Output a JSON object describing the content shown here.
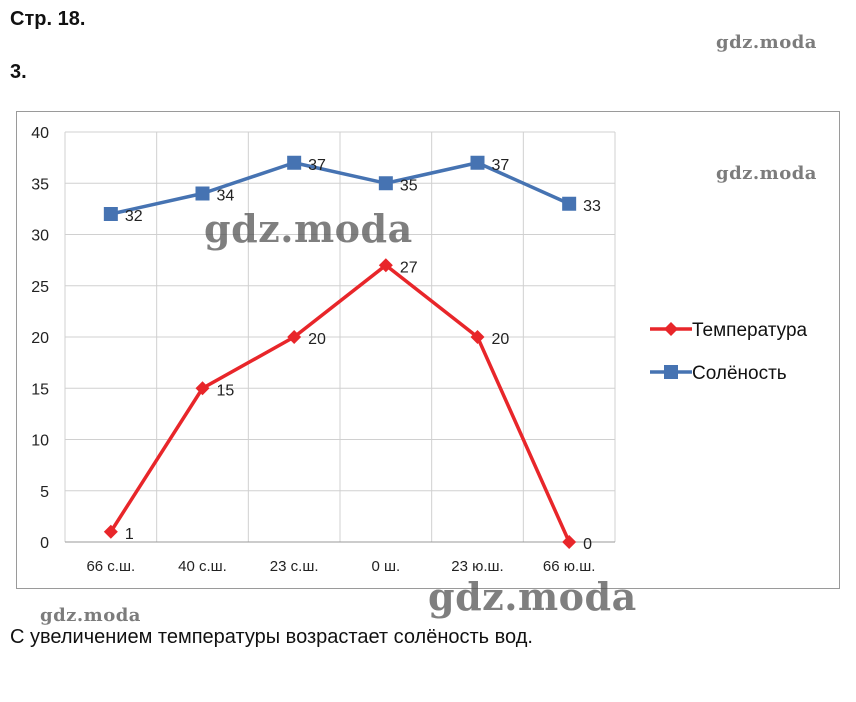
{
  "page": {
    "header": "Стр. 18.",
    "task_number": "3.",
    "answer": "С увеличением температуры возрастает солёность вод.",
    "watermark": "gdz.moda"
  },
  "chart_data": {
    "type": "line",
    "categories": [
      "66 с.ш.",
      "40 с.ш.",
      "23 с.ш.",
      "0 ш.",
      "23 ю.ш.",
      "66 ю.ш."
    ],
    "ylim": [
      0,
      40
    ],
    "yticks": [
      0,
      5,
      10,
      15,
      20,
      25,
      30,
      35,
      40
    ],
    "grid": true,
    "legend_position": "right",
    "series": [
      {
        "name": "Температура",
        "color": "#e8262a",
        "marker": "diamond",
        "values": [
          1,
          15,
          20,
          27,
          20,
          0
        ]
      },
      {
        "name": "Солёность",
        "color": "#4673b2",
        "marker": "square",
        "values": [
          32,
          34,
          37,
          35,
          37,
          33
        ]
      }
    ]
  }
}
